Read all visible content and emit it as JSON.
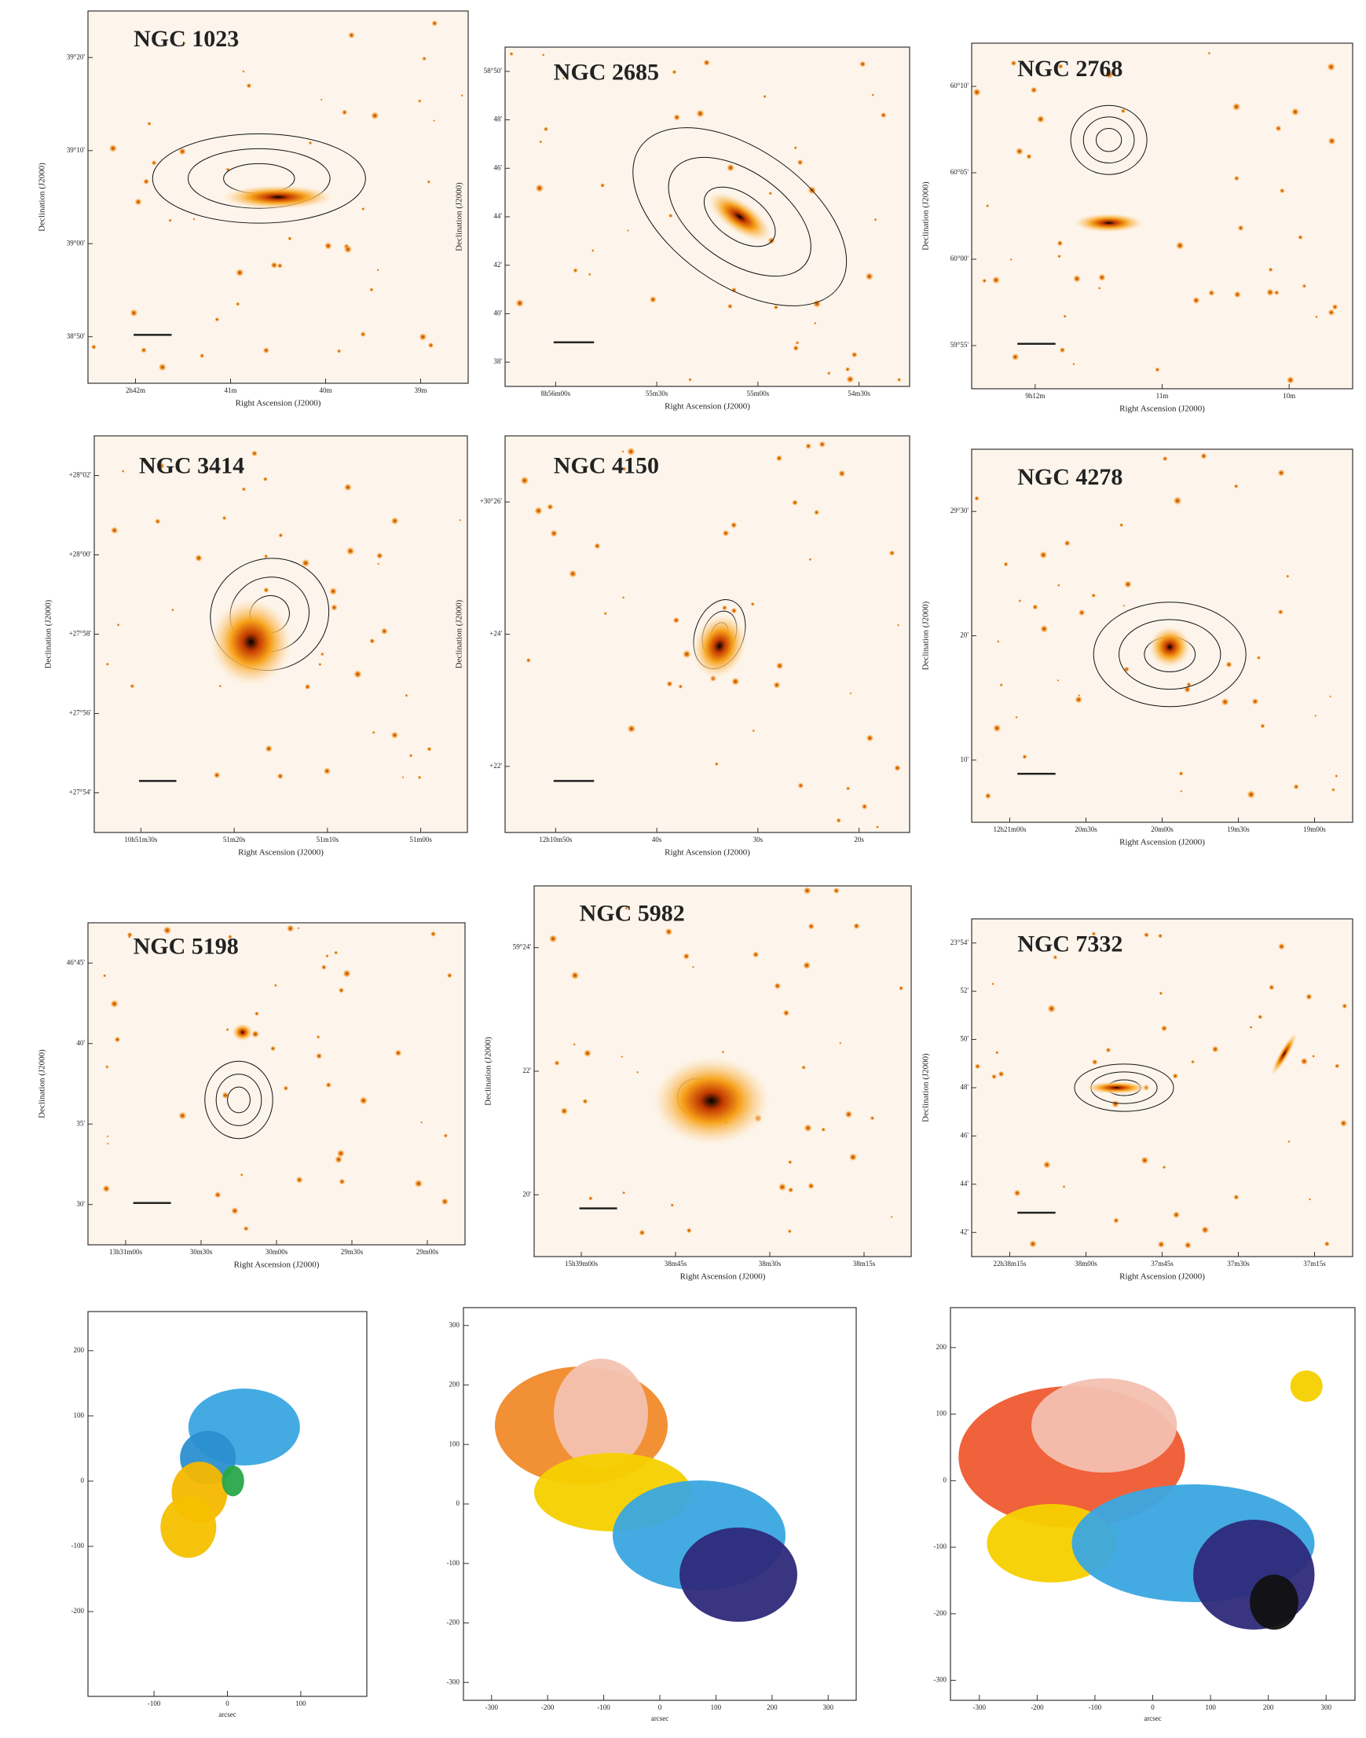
{
  "panels": [
    {
      "name": "NGC 1023",
      "x_label": "Right Ascension (J2000)",
      "y_label": "Declination (J2000)",
      "x_ticks": [
        "2h42m",
        "41m",
        "40m",
        "39m"
      ],
      "y_ticks": [
        "39°20'",
        "39°10'",
        "39°00'",
        "38°50'"
      ]
    },
    {
      "name": "NGC 2685",
      "x_label": "Right Ascension (J2000)",
      "y_label": "Declination (J2000)",
      "x_ticks": [
        "8h56m00s",
        "55m30s",
        "55m00s",
        "54m30s"
      ],
      "y_ticks": [
        "58°50'",
        "48'",
        "46'",
        "44'",
        "42'",
        "40'",
        "38'"
      ]
    },
    {
      "name": "NGC 2768",
      "x_label": "Right Ascension (J2000)",
      "y_label": "Declination (J2000)",
      "x_ticks": [
        "9h12m",
        "11m",
        "10m"
      ],
      "y_ticks": [
        "60°10'",
        "60°05'",
        "60°00'",
        "59°55'"
      ]
    },
    {
      "name": "NGC 3414",
      "x_label": "Right Ascension (J2000)",
      "y_label": "Declination (J2000)",
      "x_ticks": [
        "10h51m30s",
        "51m20s",
        "51m10s",
        "51m00s"
      ],
      "y_ticks": [
        "+28°02'",
        "+28°00'",
        "+27°58'",
        "+27°56'",
        "+27°54'"
      ]
    },
    {
      "name": "NGC 4150",
      "x_label": "Right Ascension (J2000)",
      "y_label": "Declination (J2000)",
      "x_ticks": [
        "12h10m50s",
        "40s",
        "30s",
        "20s"
      ],
      "y_ticks": [
        "+30°26'",
        "+24'",
        "+22'"
      ]
    },
    {
      "name": "NGC 4278",
      "x_label": "Right Ascension (J2000)",
      "y_label": "Declination (J2000)",
      "x_ticks": [
        "12h21m00s",
        "20m30s",
        "20m00s",
        "19m30s",
        "19m00s"
      ],
      "y_ticks": [
        "29°30'",
        "20'",
        "10'"
      ]
    },
    {
      "name": "NGC 5198",
      "x_label": "Right Ascension (J2000)",
      "y_label": "Declination (J2000)",
      "x_ticks": [
        "13h31m00s",
        "30m30s",
        "30m00s",
        "29m30s",
        "29m00s"
      ],
      "y_ticks": [
        "46°45'",
        "40'",
        "35'",
        "30'"
      ]
    },
    {
      "name": "NGC 5982",
      "x_label": "Right Ascension (J2000)",
      "y_label": "Declination (J2000)",
      "x_ticks": [
        "15h39m00s",
        "38m45s",
        "38m30s",
        "38m15s"
      ],
      "y_ticks": [
        "59°24'",
        "22'",
        "20'"
      ]
    },
    {
      "name": "NGC 7332",
      "x_label": "Right Ascension (J2000)",
      "y_label": "Declination (J2000)",
      "x_ticks": [
        "22h38m15s",
        "38m00s",
        "37m45s",
        "37m30s",
        "37m15s"
      ],
      "y_ticks": [
        "23°54'",
        "52'",
        "50'",
        "48'",
        "46'",
        "44'",
        "42'"
      ]
    }
  ],
  "velocity_maps": [
    {
      "x_label": "arcsec",
      "xlim": [
        -190,
        190
      ],
      "ylim": [
        -330,
        260
      ],
      "xticks": [
        -100,
        0,
        100
      ],
      "yticks": [
        200,
        100,
        0,
        -100,
        -200
      ]
    },
    {
      "x_label": "arcsec",
      "xlim": [
        -350,
        350
      ],
      "ylim": [
        -330,
        330
      ],
      "xticks": [
        -300,
        -200,
        -100,
        0,
        100,
        200,
        300
      ],
      "yticks": [
        300,
        200,
        100,
        0,
        -100,
        -200,
        -300
      ]
    },
    {
      "x_label": "arcsec",
      "xlim": [
        -350,
        350
      ],
      "ylim": [
        -330,
        260
      ],
      "xticks": [
        -300,
        -200,
        -100,
        0,
        100,
        200,
        300
      ],
      "yticks": [
        200,
        100,
        0,
        -100,
        -200,
        -300
      ]
    }
  ]
}
